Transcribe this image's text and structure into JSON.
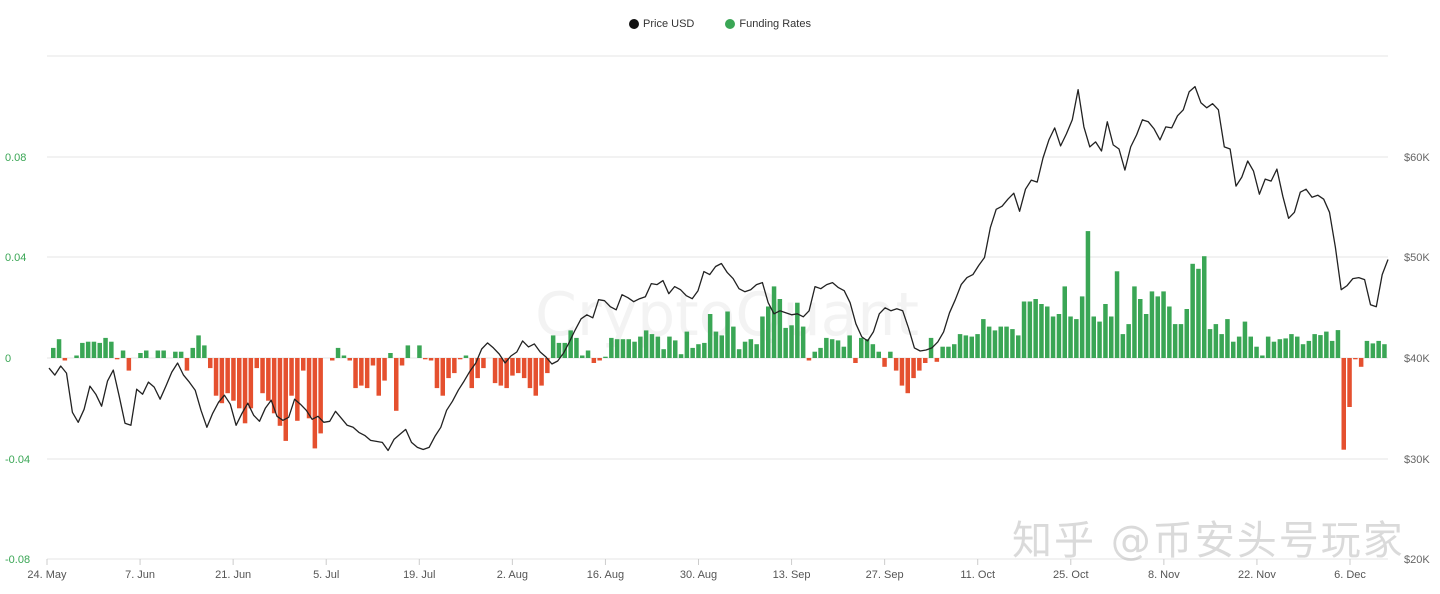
{
  "legend": [
    {
      "label": "Price USD",
      "color": "#111111"
    },
    {
      "label": "Funding Rates",
      "color": "#3aa655"
    }
  ],
  "watermark": "知乎 @币安头号玩家",
  "brand_watermark": "CryptoQuant",
  "colors": {
    "positive": "#3aa655",
    "negative": "#e5502f",
    "price": "#222222",
    "grid": "#e6e6e6"
  },
  "chart_data": {
    "type": "bar+line",
    "title": "",
    "legend_position": "top-center",
    "grid": true,
    "x_ticks": [
      "24. May",
      "7. Jun",
      "21. Jun",
      "5. Jul",
      "19. Jul",
      "2. Aug",
      "16. Aug",
      "30. Aug",
      "13. Sep",
      "27. Sep",
      "11. Oct",
      "25. Oct",
      "8. Nov",
      "22. Nov",
      "6. Dec"
    ],
    "y_left": {
      "label": "Funding Rates",
      "ticks": [
        "0.08",
        "0.04",
        "0",
        "-0.04",
        "-0.08"
      ],
      "range": [
        -0.08,
        0.08
      ]
    },
    "y_right": {
      "label": "Price USD",
      "ticks": [
        "$60K",
        "$50K",
        "$40K",
        "$30K",
        "$20K"
      ],
      "range": [
        20000,
        60000
      ]
    },
    "start_date": "24. May",
    "series": [
      {
        "name": "Funding Rates",
        "type": "bar",
        "values": [
          0.004,
          0.0075,
          -0.001,
          0,
          0.001,
          0.006,
          0.0065,
          0.0065,
          0.006,
          0.008,
          0.0065,
          -0.0005,
          0.003,
          -0.005,
          0,
          0.002,
          0.003,
          0,
          0.003,
          0.003,
          0,
          0.0025,
          0.0025,
          -0.005,
          0.004,
          0.009,
          0.005,
          -0.004,
          -0.015,
          -0.018,
          -0.014,
          -0.017,
          -0.02,
          -0.026,
          -0.02,
          -0.004,
          -0.014,
          -0.017,
          -0.022,
          -0.027,
          -0.033,
          -0.015,
          -0.025,
          -0.005,
          -0.024,
          -0.036,
          -0.03,
          0,
          -0.001,
          0.004,
          0.001,
          -0.001,
          -0.012,
          -0.011,
          -0.012,
          -0.003,
          -0.015,
          -0.009,
          0.002,
          -0.021,
          -0.003,
          0.005,
          0,
          0.005,
          -0.0005,
          -0.001,
          -0.012,
          -0.015,
          -0.008,
          -0.006,
          -0.0005,
          0.001,
          -0.012,
          -0.008,
          -0.004,
          0,
          -0.01,
          -0.011,
          -0.012,
          -0.007,
          -0.006,
          -0.008,
          -0.012,
          -0.015,
          -0.011,
          -0.006,
          0.009,
          0.006,
          0.006,
          0.011,
          0.008,
          0.001,
          0.003,
          -0.002,
          -0.001,
          0.0005,
          0.008,
          0.0075,
          0.0075,
          0.0075,
          0.0065,
          0.0085,
          0.011,
          0.0095,
          0.0085,
          0.0035,
          0.0085,
          0.007,
          0.0015,
          0.0105,
          0.004,
          0.0055,
          0.006,
          0.0175,
          0.0105,
          0.009,
          0.0185,
          0.0125,
          0.0035,
          0.0065,
          0.0075,
          0.0055,
          0.0165,
          0.0205,
          0.0285,
          0.0235,
          0.012,
          0.013,
          0.022,
          0.0125,
          -0.001,
          0.0025,
          0.004,
          0.008,
          0.0075,
          0.007,
          0.0045,
          0.009,
          -0.002,
          0.008,
          0.0075,
          0.0055,
          0.0025,
          -0.0035,
          0.0025,
          -0.005,
          -0.011,
          -0.014,
          -0.008,
          -0.005,
          -0.002,
          0.008,
          -0.0015,
          0.0045,
          0.0045,
          0.0055,
          0.0095,
          0.009,
          0.0085,
          0.0095,
          0.0155,
          0.0125,
          0.011,
          0.0125,
          0.0125,
          0.0115,
          0.009,
          0.0225,
          0.0225,
          0.0235,
          0.0215,
          0.0205,
          0.0165,
          0.0175,
          0.0285,
          0.0165,
          0.0155,
          0.0245,
          0.0505,
          0.0165,
          0.0145,
          0.0215,
          0.0165,
          0.0345,
          0.0095,
          0.0135,
          0.0285,
          0.0235,
          0.0175,
          0.0265,
          0.0245,
          0.0265,
          0.0205,
          0.0135,
          0.0135,
          0.0195,
          0.0375,
          0.0355,
          0.0405,
          0.0115,
          0.0135,
          0.0095,
          0.0155,
          0.0065,
          0.0085,
          0.0145,
          0.0085,
          0.0045,
          0.001,
          0.0085,
          0.0065,
          0.0075,
          0.0078,
          0.0095,
          0.0085,
          0.0055,
          0.0068,
          0.0095,
          0.0091,
          0.0105,
          0.0068,
          0.0111,
          -0.0365,
          -0.0195,
          -0.0005,
          -0.0035,
          0.0068,
          0.0058,
          0.0068,
          0.0055
        ]
      },
      {
        "name": "Price USD",
        "type": "line",
        "values": [
          39000,
          38300,
          39200,
          38500,
          34600,
          33600,
          34900,
          37200,
          36400,
          35200,
          37700,
          38800,
          36200,
          33500,
          33300,
          36900,
          36400,
          37600,
          37100,
          35900,
          37200,
          38600,
          39500,
          38300,
          37600,
          36800,
          34800,
          33100,
          34500,
          35600,
          36300,
          35400,
          33300,
          34500,
          35500,
          34300,
          33700,
          35000,
          35800,
          34200,
          33800,
          34100,
          35900,
          35400,
          34800,
          33900,
          34200,
          33600,
          33700,
          34700,
          34000,
          33300,
          33100,
          32600,
          32300,
          31800,
          31700,
          31600,
          30800,
          31900,
          32400,
          32900,
          31600,
          31100,
          30900,
          31100,
          32200,
          33100,
          34800,
          35700,
          36800,
          37700,
          38700,
          39500,
          40900,
          41500,
          41000,
          40400,
          39500,
          40200,
          40600,
          41700,
          41100,
          41400,
          40600,
          40100,
          39400,
          39700,
          40500,
          41600,
          42800,
          43900,
          44300,
          44000,
          45800,
          45700,
          45100,
          44800,
          46300,
          46000,
          45600,
          45900,
          46100,
          47400,
          47300,
          47700,
          46400,
          47100,
          46800,
          46200,
          45900,
          46700,
          48600,
          48300,
          49100,
          49400,
          48500,
          47900,
          46900,
          46600,
          46800,
          47300,
          47500,
          45500,
          44400,
          44700,
          44500,
          44300,
          44400,
          44100,
          44700,
          47100,
          46900,
          47300,
          47500,
          47000,
          46700,
          45500,
          43400,
          42100,
          41700,
          42600,
          44400,
          45000,
          44700,
          44900,
          44700,
          43000,
          41000,
          40700,
          40800,
          41000,
          41600,
          42600,
          44500,
          45800,
          47300,
          48000,
          48300,
          49200,
          50000,
          53000,
          54800,
          55100,
          55800,
          56400,
          54600,
          56800,
          57700,
          57500,
          59900,
          61700,
          62900,
          61100,
          62300,
          63700,
          66700,
          63000,
          61000,
          61500,
          60600,
          63500,
          61200,
          60800,
          58700,
          61000,
          62200,
          63700,
          63500,
          62800,
          61700,
          63000,
          62900,
          64100,
          64700,
          66500,
          67000,
          65400,
          64900,
          65300,
          64700,
          61000,
          60800,
          57100,
          58000,
          59600,
          58600,
          56300,
          57800,
          57600,
          58800,
          56100,
          53900,
          54500,
          56500,
          56800,
          56000,
          56200,
          55800,
          54500,
          51000,
          46800,
          47200,
          47900,
          48000,
          47800,
          45300,
          45100,
          48300,
          49800
        ]
      }
    ]
  }
}
